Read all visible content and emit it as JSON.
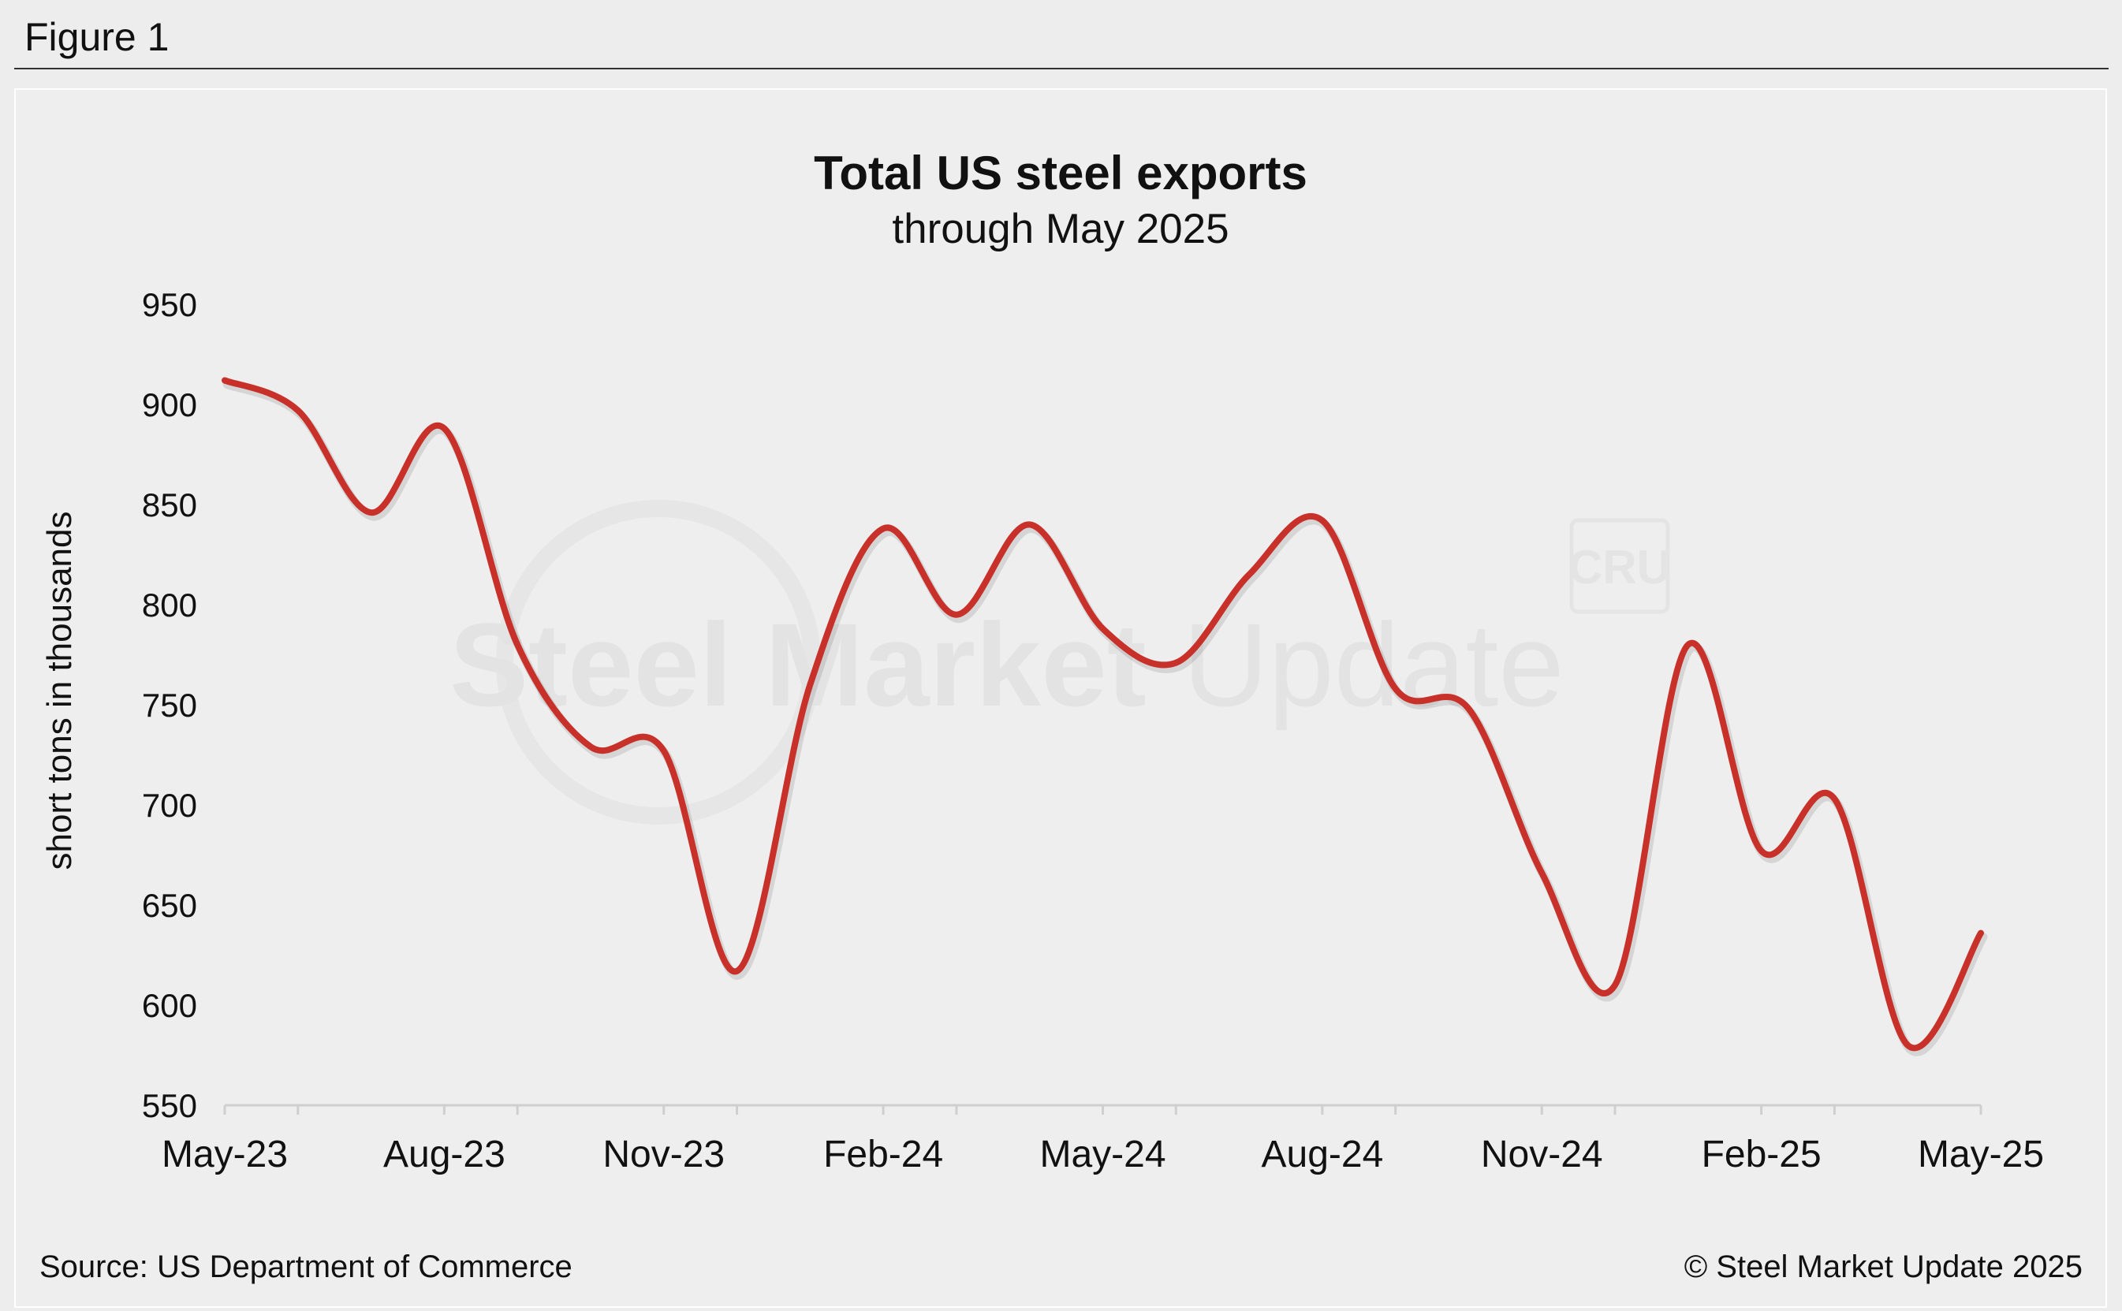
{
  "figure_label": "Figure 1",
  "watermark": {
    "brand_bold": "Steel Market",
    "brand_light": "Update",
    "cru": "CRU"
  },
  "colors": {
    "line": "#c8302a",
    "axis": "#cfcfcf",
    "background": "#eeeeee"
  },
  "chart_data": {
    "type": "line",
    "title": "Total US steel exports",
    "subtitle": "through May 2025",
    "xlabel": "",
    "ylabel": "short tons in thousands",
    "ylim": [
      550,
      950
    ],
    "yticks": [
      950,
      900,
      850,
      800,
      750,
      700,
      650,
      600,
      550
    ],
    "x": [
      "May-23",
      "Jun-23",
      "Jul-23",
      "Aug-23",
      "Sep-23",
      "Oct-23",
      "Nov-23",
      "Dec-23",
      "Jan-24",
      "Feb-24",
      "Mar-24",
      "Apr-24",
      "May-24",
      "Jun-24",
      "Jul-24",
      "Aug-24",
      "Sep-24",
      "Oct-24",
      "Nov-24",
      "Dec-24",
      "Jan-25",
      "Feb-25",
      "Mar-25",
      "Apr-25",
      "May-25"
    ],
    "xtick_labels": [
      "May-23",
      "Aug-23",
      "Nov-23",
      "Feb-24",
      "May-24",
      "Aug-24",
      "Nov-24",
      "Feb-25",
      "May-25"
    ],
    "series": [
      {
        "name": "Total US steel exports",
        "values": [
          912,
          897,
          846,
          888,
          780,
          729,
          727,
          617,
          760,
          838,
          795,
          840,
          788,
          771,
          815,
          842,
          758,
          748,
          666,
          610,
          780,
          677,
          703,
          580,
          636
        ]
      }
    ],
    "grid": false,
    "legend": "none"
  },
  "footer": {
    "source": "Source: US Department of Commerce",
    "copyright": "© Steel Market Update 2025"
  }
}
